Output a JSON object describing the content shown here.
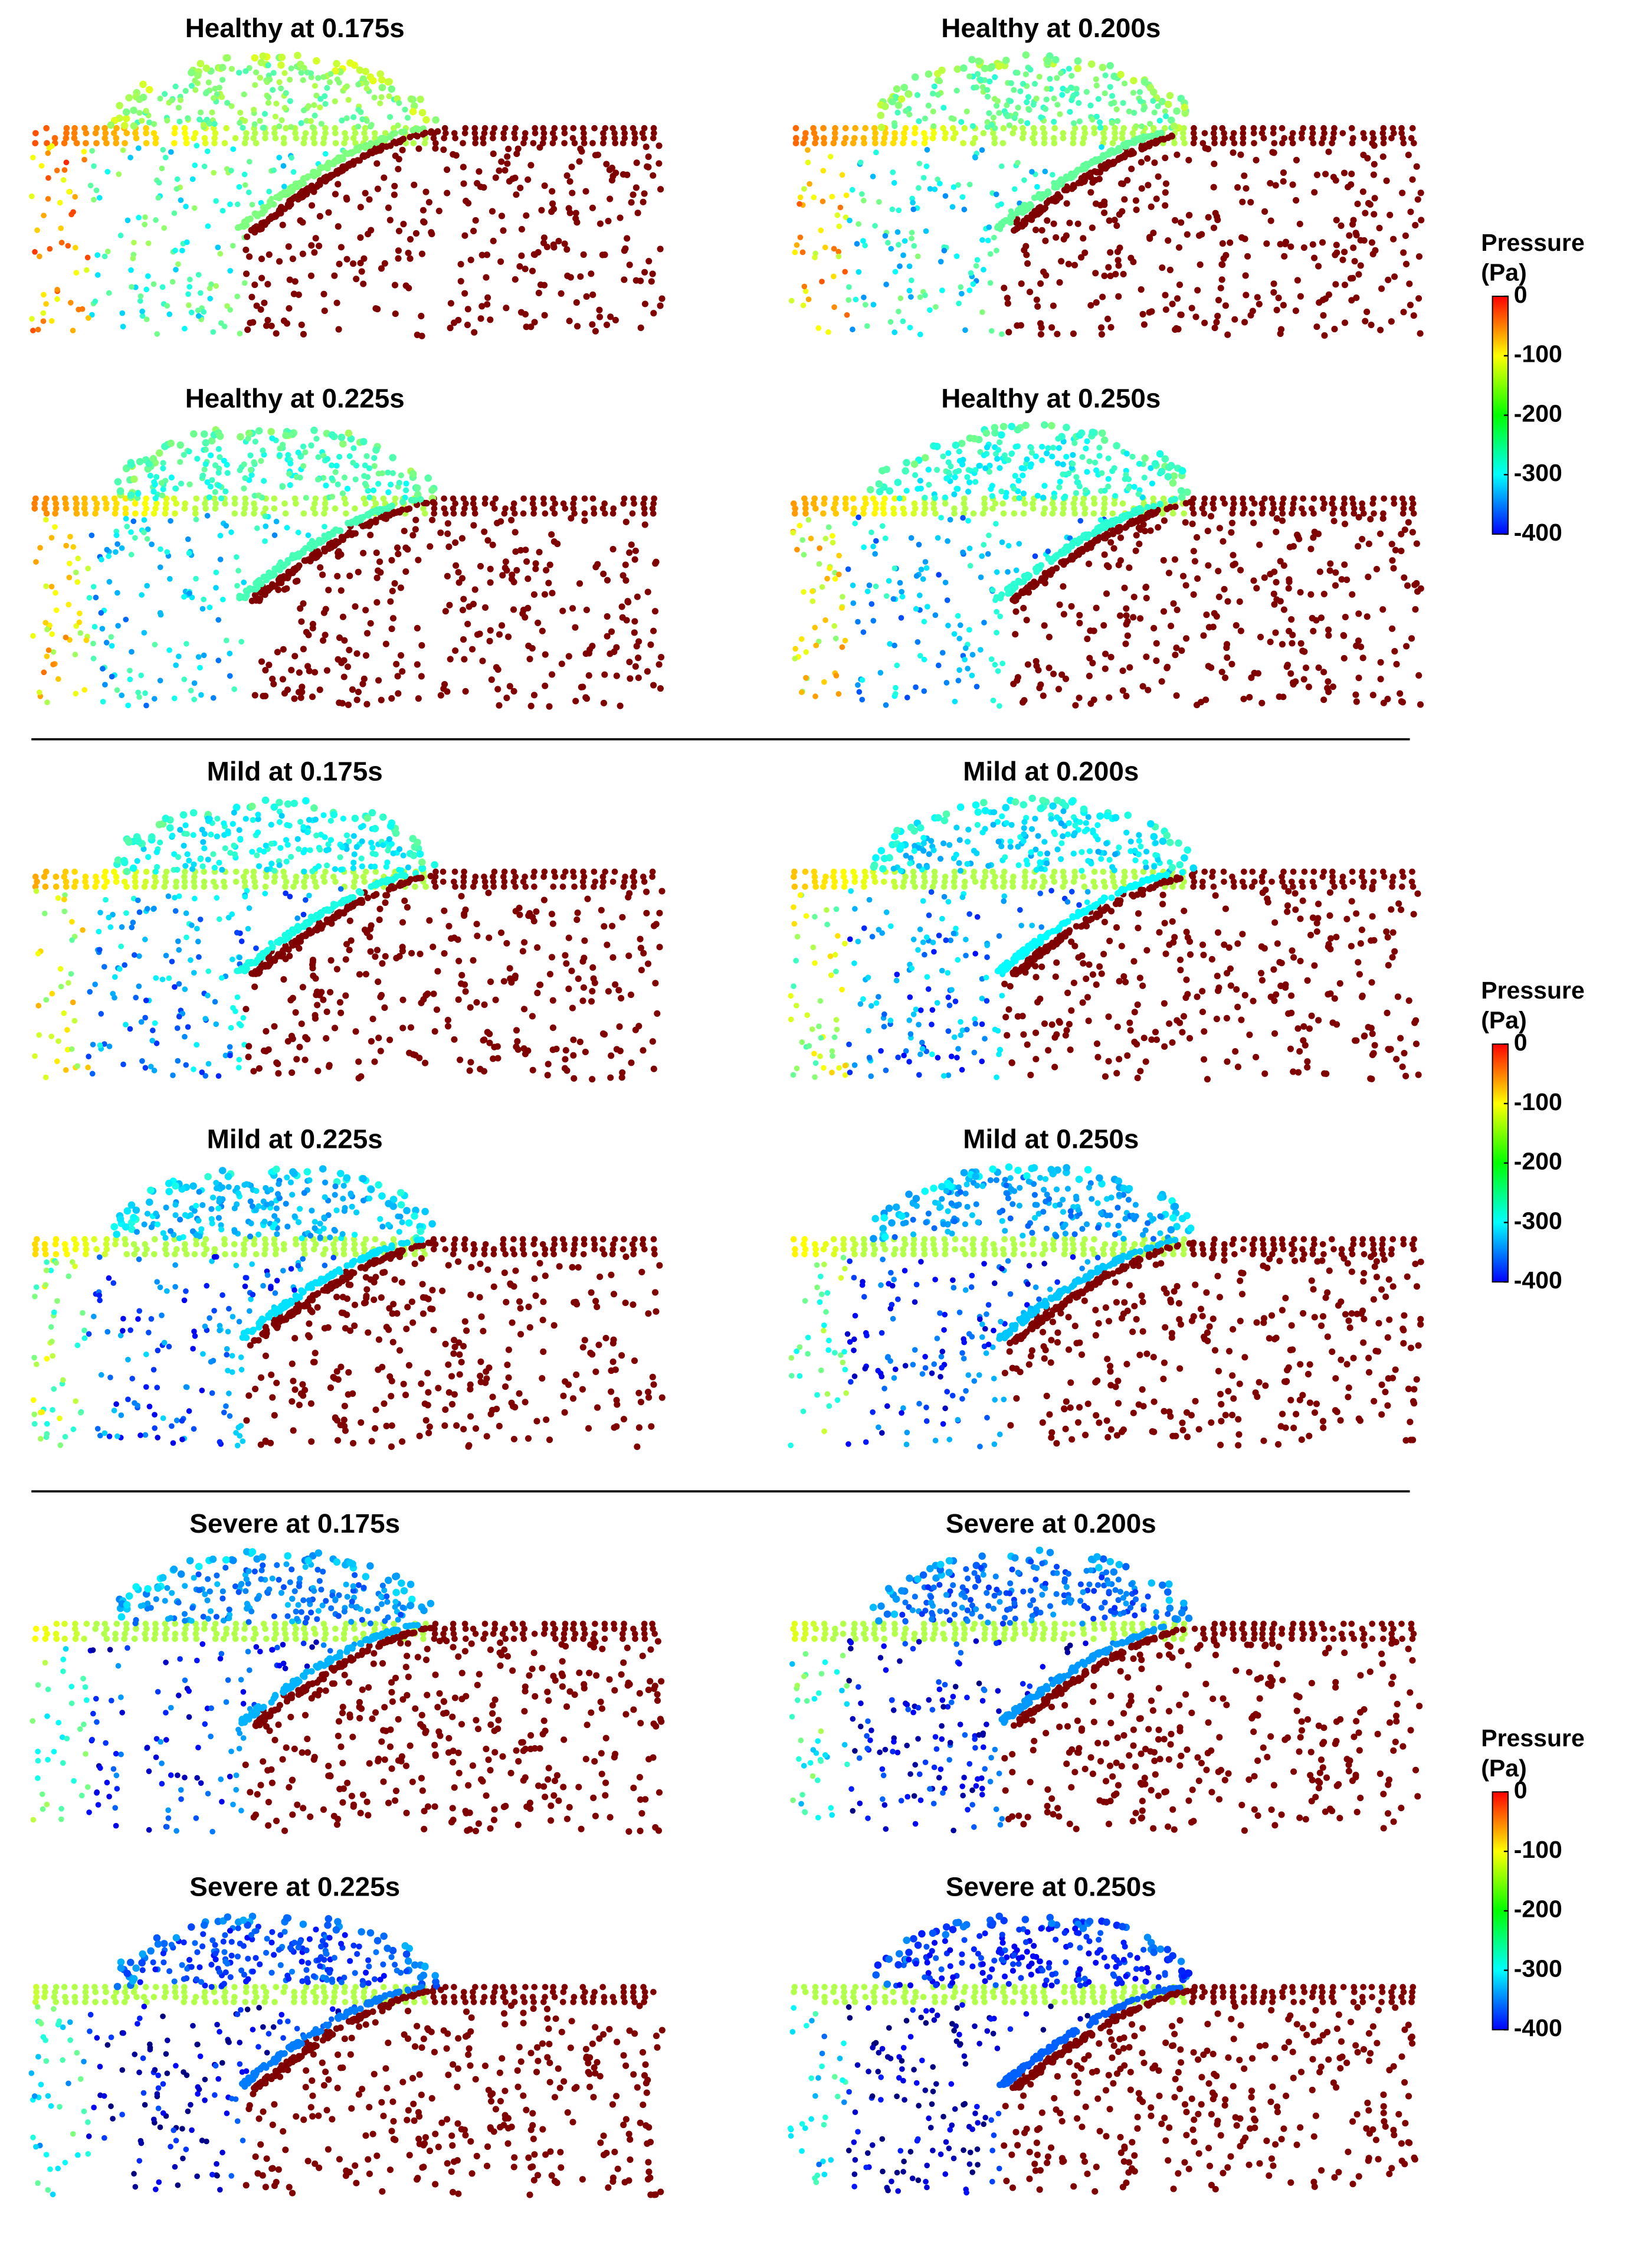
{
  "groups": [
    {
      "panels": [
        {
          "title": "Healthy at 0.175s"
        },
        {
          "title": "Healthy at 0.200s"
        },
        {
          "title": "Healthy at 0.225s"
        },
        {
          "title": "Healthy at 0.250s"
        }
      ],
      "colorbar": {
        "title": "Pressure",
        "unit": "(Pa)",
        "clim": [
          -400,
          0
        ],
        "ticks": [
          0,
          -100,
          -200,
          -300,
          -400
        ]
      }
    },
    {
      "panels": [
        {
          "title": "Mild at 0.175s"
        },
        {
          "title": "Mild at 0.200s"
        },
        {
          "title": "Mild at 0.225s"
        },
        {
          "title": "Mild at 0.250s"
        }
      ],
      "colorbar": {
        "title": "Pressure",
        "unit": "(Pa)",
        "clim": [
          -400,
          0
        ],
        "ticks": [
          0,
          -100,
          -200,
          -300,
          -400
        ]
      }
    },
    {
      "panels": [
        {
          "title": "Severe at 0.175s"
        },
        {
          "title": "Severe at 0.200s"
        },
        {
          "title": "Severe at 0.225s"
        },
        {
          "title": "Severe at 0.250s"
        }
      ],
      "colorbar": {
        "title": "Pressure",
        "unit": "(Pa)",
        "clim": [
          -400,
          0
        ],
        "ticks": [
          0,
          -100,
          -200,
          -300,
          -400
        ]
      }
    }
  ]
}
